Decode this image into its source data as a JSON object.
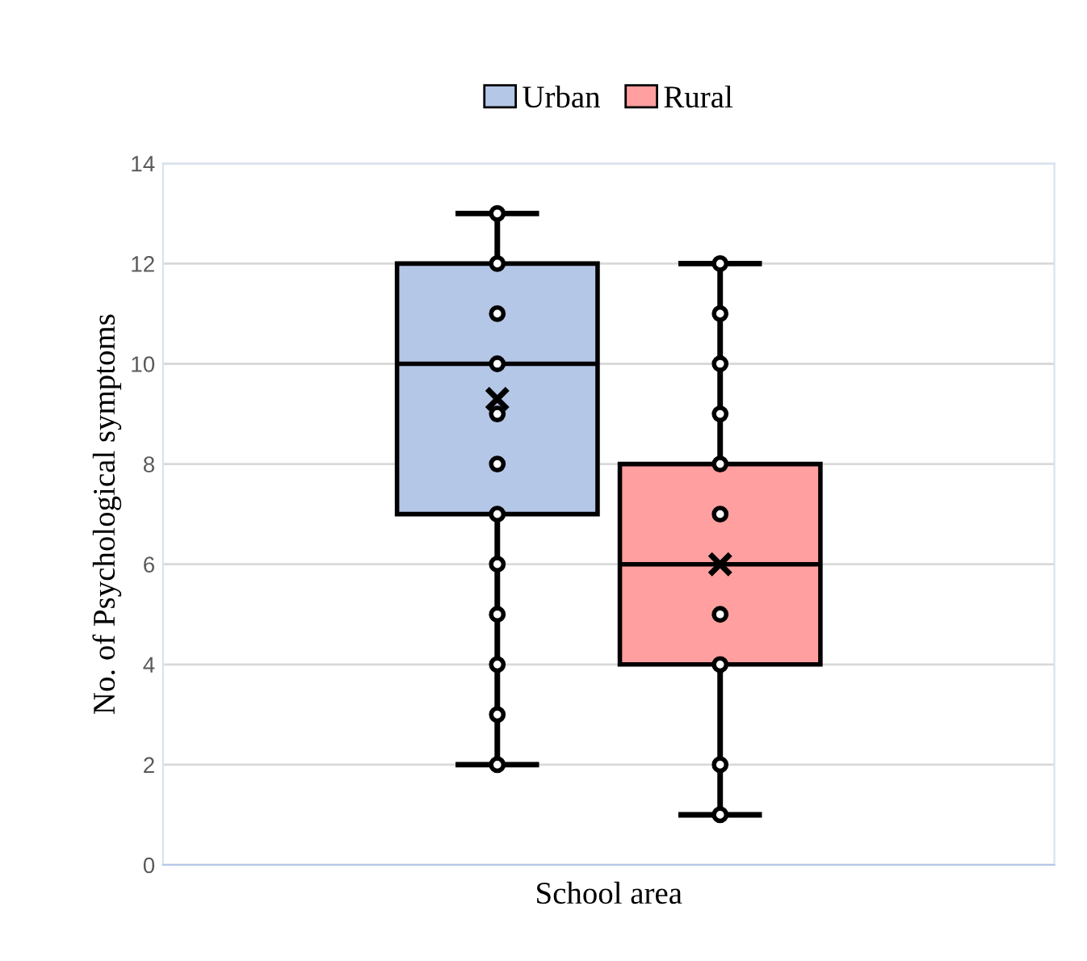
{
  "chart_data": {
    "type": "box",
    "xlabel": "School area",
    "ylabel": "No. of Psychological symptoms",
    "categories": [
      null
    ],
    "series": [
      {
        "name": "Urban",
        "color": "#b4c7e7",
        "boxes": [
          {
            "low": 2,
            "q1": 7,
            "median": 10,
            "q3": 12,
            "high": 13,
            "mean": 9.3
          }
        ]
      },
      {
        "name": "Rural",
        "color": "#ff9f9f",
        "boxes": [
          {
            "low": 1,
            "q1": 4,
            "median": 6,
            "q3": 8,
            "high": 12,
            "mean": 6.0
          }
        ]
      },
      {
        "type": "scatter",
        "color": "#000000",
        "x": [
          null,
          null,
          null,
          null,
          null,
          null,
          null,
          null,
          null,
          null,
          null,
          null
        ],
        "values": [
          2,
          3,
          4,
          5,
          6,
          7,
          8,
          9,
          10,
          11,
          12,
          13
        ]
      },
      {
        "type": "scatter",
        "color": "#000000",
        "x": [
          null,
          null,
          null,
          null,
          null,
          null,
          null,
          null,
          null,
          null,
          null
        ],
        "values": [
          1,
          2,
          4,
          5,
          null,
          7,
          8,
          9,
          10,
          11,
          12
        ]
      }
    ],
    "ylim": [
      0,
      14
    ],
    "yticks": [
      0,
      2,
      4,
      6,
      8,
      10,
      12,
      14
    ],
    "grid": "y",
    "legend": "top",
    "marker": "circle"
  }
}
